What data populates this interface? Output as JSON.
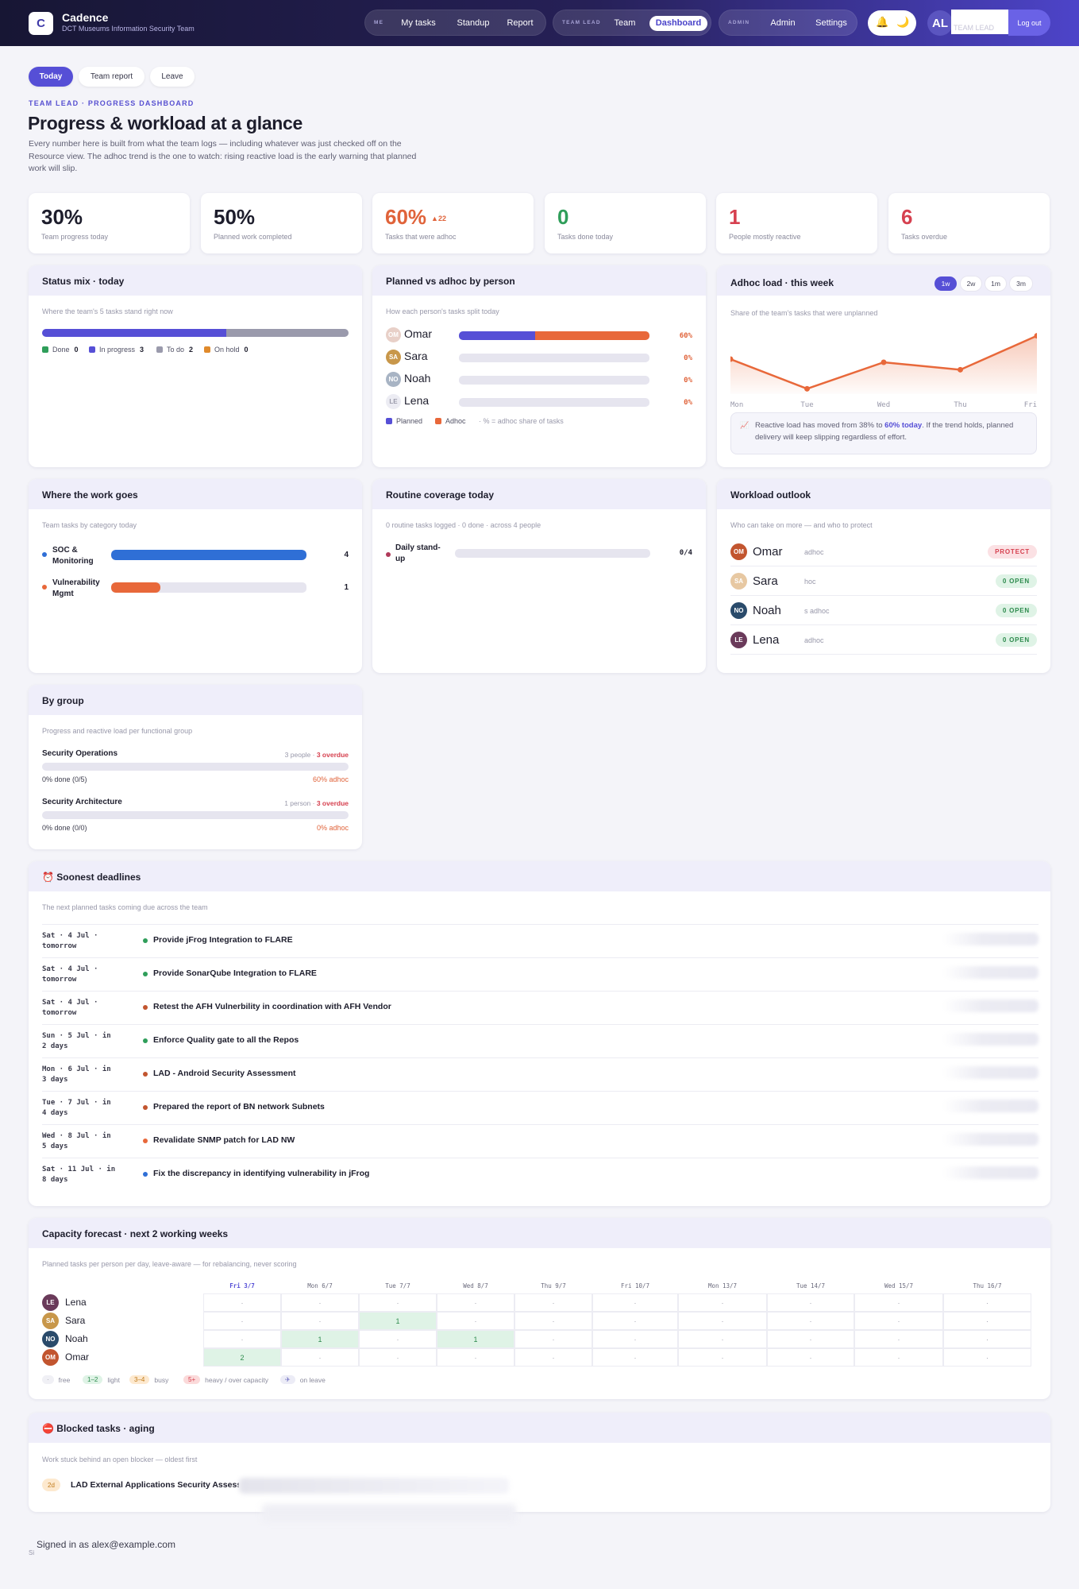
{
  "header": {
    "logo_letter": "C",
    "app_name": "Cadence",
    "app_sub": "DCT Museums Information Security Team",
    "groups": [
      {
        "label": "ME",
        "items": [
          "My tasks",
          "Standup",
          "Report"
        ]
      },
      {
        "label": "TEAM LEAD",
        "items": [
          "Team",
          "Dashboard"
        ],
        "active": "Dashboard"
      },
      {
        "label": "ADMIN",
        "items": [
          "Admin",
          "Settings"
        ]
      }
    ],
    "user_initials": "AL",
    "role": "TEAM LEAD",
    "logout": "Log out"
  },
  "subnav": [
    "Today",
    "Team report",
    "Leave"
  ],
  "page": {
    "eyebrow": "TEAM LEAD · PROGRESS DASHBOARD",
    "title": "Progress & workload at a glance",
    "intro": "Every number here is built from what the team logs — including whatever was just checked off on the Resource view. The adhoc trend is the one to watch: rising reactive load is the early warning that planned work will slip."
  },
  "kpis": [
    {
      "value": "30%",
      "label": "Team progress today",
      "color": "#1d1d2c"
    },
    {
      "value": "50%",
      "label": "Planned work completed",
      "color": "#1d1d2c"
    },
    {
      "value": "60%",
      "label": "Tasks that were adhoc",
      "color": "#e0633a",
      "delta": "▲22"
    },
    {
      "value": "0",
      "label": "Tasks done today",
      "color": "#2f9e5a"
    },
    {
      "value": "1",
      "label": "People mostly reactive",
      "color": "#d6404f"
    },
    {
      "value": "6",
      "label": "Tasks overdue",
      "color": "#d6404f"
    }
  ],
  "status_mix": {
    "title": "Status mix · today",
    "subtitle": "Where the team's 5 tasks stand right now",
    "segments": [
      {
        "label": "Done",
        "count": 0,
        "color": "#2f9e5a"
      },
      {
        "label": "In progress",
        "count": 3,
        "color": "#564fd6"
      },
      {
        "label": "To do",
        "count": 2,
        "color": "#9a9aac"
      },
      {
        "label": "On hold",
        "count": 0,
        "color": "#e08a2c"
      }
    ]
  },
  "planned_vs_adhoc": {
    "title": "Planned vs adhoc by person",
    "subtitle": "How each person's tasks split today",
    "people": [
      {
        "initials": "OM",
        "name": "Omar",
        "planned": 0.4,
        "adhoc": 0.6,
        "pct": "60%",
        "color": "#e8d0c8"
      },
      {
        "initials": "SA",
        "name": "Sara",
        "planned": 0,
        "adhoc": 0,
        "pct": "0%",
        "color": "#c8974a"
      },
      {
        "initials": "NO",
        "name": "Noah",
        "planned": 0,
        "adhoc": 0,
        "pct": "0%",
        "color": "#a8b4c4"
      },
      {
        "initials": "LE",
        "name": "Lena",
        "planned": 0,
        "adhoc": 0,
        "pct": "0%",
        "color": "#ececf3"
      }
    ],
    "legend": {
      "planned": "Planned",
      "adhoc": "Adhoc",
      "note": "· % = adhoc share of tasks"
    }
  },
  "adhoc_load": {
    "title": "Adhoc load · this week",
    "ranges": [
      "1w",
      "2w",
      "1m",
      "3m"
    ],
    "active_range": "1w",
    "subtitle": "Share of the team's tasks that were unplanned",
    "note_prefix": "Reactive load has moved from 38% to ",
    "note_highlight": "60% today",
    "note_suffix": ". If the trend holds, planned delivery will keep slipping regardless of effort."
  },
  "chart_data": {
    "type": "area",
    "x": [
      "Mon",
      "Tue",
      "Wed",
      "Thu",
      "Fri"
    ],
    "y": [
      38,
      10,
      35,
      28,
      60
    ],
    "ylim": [
      0,
      100
    ],
    "color": "#e8683a",
    "grid": false
  },
  "work_goes": {
    "title": "Where the work goes",
    "subtitle": "Team tasks by category today",
    "categories": [
      {
        "name": "SOC & Monitoring",
        "count": 4,
        "max": 4,
        "color": "#2f6fd6"
      },
      {
        "name": "Vulnerability Mgmt",
        "count": 1,
        "max": 4,
        "color": "#e8683a"
      }
    ]
  },
  "routine": {
    "title": "Routine coverage today",
    "subtitle": "0 routine tasks logged · 0 done · across 4 people",
    "items": [
      {
        "name": "Daily stand-up",
        "value": "0/4",
        "done": 0
      }
    ]
  },
  "outlook": {
    "title": "Workload outlook",
    "subtitle": "Who can take on more — and who to protect",
    "people": [
      {
        "initials": "OM",
        "name": "Omar",
        "meta": "adhoc",
        "badge": "PROTECT",
        "color": "#c2552f"
      },
      {
        "initials": "SA",
        "name": "Sara",
        "meta": "hoc",
        "badge": "0 OPEN",
        "color": "#e7c8a2"
      },
      {
        "initials": "NO",
        "name": "Noah",
        "meta": "s adhoc",
        "badge": "0 OPEN",
        "color": "#2a4b6b"
      },
      {
        "initials": "LE",
        "name": "Lena",
        "meta": "adhoc",
        "badge": "0 OPEN",
        "color": "#6a3a5a"
      }
    ]
  },
  "groups": {
    "title": "By group",
    "subtitle": "Progress and reactive load per functional group",
    "items": [
      {
        "name": "Security Operations",
        "meta": "3 people · ",
        "overdue": "3 overdue",
        "done": "0% done (0/5)",
        "adhoc": "60% adhoc"
      },
      {
        "name": "Security Architecture",
        "meta": "1 person · ",
        "overdue": "3 overdue",
        "done": "0% done (0/0)",
        "adhoc": "0% adhoc"
      }
    ]
  },
  "deadlines": {
    "title": "⏰ Soonest deadlines",
    "subtitle": "The next planned tasks coming due across the team",
    "items": [
      {
        "date": "Sat · 4 Jul · tomorrow",
        "title": "Provide jFrog Integration to FLARE",
        "color": "#2f9e5a"
      },
      {
        "date": "Sat · 4 Jul · tomorrow",
        "title": "Provide SonarQube Integration to FLARE",
        "color": "#2f9e5a"
      },
      {
        "date": "Sat · 4 Jul · tomorrow",
        "title": "Retest the AFH Vulnerbility in coordination with AFH Vendor",
        "color": "#c2552f"
      },
      {
        "date": "Sun · 5 Jul · in 2 days",
        "title": "Enforce Quality gate to all the Repos",
        "color": "#2f9e5a"
      },
      {
        "date": "Mon · 6 Jul · in 3 days",
        "title": "LAD - Android Security Assessment",
        "color": "#c2552f"
      },
      {
        "date": "Tue · 7 Jul · in 4 days",
        "title": "Prepared the report of BN network Subnets",
        "color": "#c2552f"
      },
      {
        "date": "Wed · 8 Jul · in 5 days",
        "title": "Revalidate SNMP patch for LAD NW",
        "color": "#e8683a"
      },
      {
        "date": "Sat · 11 Jul · in 8 days",
        "title": "Fix the discrepancy in identifying vulnerability in jFrog",
        "color": "#2f6fd6"
      }
    ]
  },
  "capacity": {
    "title": "Capacity forecast · next 2 working weeks",
    "subtitle": "Planned tasks per person per day, leave-aware — for rebalancing, never scoring",
    "days": [
      "Fri 3/7",
      "Mon 6/7",
      "Tue 7/7",
      "Wed 8/7",
      "Thu 9/7",
      "Fri 10/7",
      "Mon 13/7",
      "Tue 14/7",
      "Wed 15/7",
      "Thu 16/7"
    ],
    "rows": [
      {
        "initials": "LE",
        "name": "Lena",
        "color": "#6a3a5a",
        "values": [
          "·",
          "·",
          "·",
          "·",
          "·",
          "·",
          "·",
          "·",
          "·",
          "·"
        ]
      },
      {
        "initials": "SA",
        "name": "Sara",
        "color": "#c8974a",
        "values": [
          "·",
          "·",
          "1",
          "·",
          "·",
          "·",
          "·",
          "·",
          "·",
          "·"
        ]
      },
      {
        "initials": "NO",
        "name": "Noah",
        "color": "#2a4b6b",
        "values": [
          "·",
          "1",
          "·",
          "1",
          "·",
          "·",
          "·",
          "·",
          "·",
          "·"
        ]
      },
      {
        "initials": "OM",
        "name": "Omar",
        "color": "#c2552f",
        "values": [
          "2",
          "·",
          "·",
          "·",
          "·",
          "·",
          "·",
          "·",
          "·",
          "·"
        ]
      }
    ],
    "legend": [
      {
        "chip": "·",
        "label": "free",
        "bg": "#f0f0f5",
        "fg": "#9a9aaa"
      },
      {
        "chip": "1–2",
        "label": "light",
        "bg": "#dff3e6",
        "fg": "#2c8a4c"
      },
      {
        "chip": "3–4",
        "label": "busy",
        "bg": "#fde9cf",
        "fg": "#c07a1a"
      },
      {
        "chip": "5+",
        "label": "heavy / over capacity",
        "bg": "#fbdada",
        "fg": "#d6404f"
      },
      {
        "chip": "✈",
        "label": "on leave",
        "bg": "#ececf6",
        "fg": "#6a6ac0"
      }
    ]
  },
  "blocked": {
    "title": "⛔ Blocked tasks · aging",
    "subtitle": "Work stuck behind an open blocker — oldest first",
    "items": [
      {
        "age": "2d",
        "title": "LAD External Applications Security Assess"
      }
    ]
  },
  "footer": {
    "signed_in": "Signed in as alex@example.com",
    "small": "Si"
  }
}
